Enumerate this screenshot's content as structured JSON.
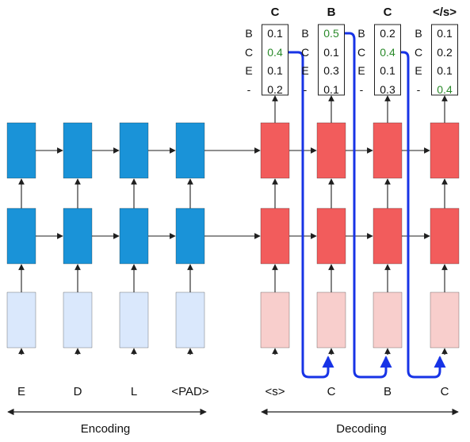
{
  "colors": {
    "enc_dark": "#1a93d8",
    "enc_light": "#dae8fc",
    "dec_dark": "#f25c5c",
    "dec_light": "#f8cecc",
    "highlight": "#2a8a2a",
    "beam_path": "#1733e6",
    "stroke": "#1f1f1f"
  },
  "encoder": {
    "inputs": [
      "E",
      "D",
      "L",
      "<PAD>"
    ]
  },
  "decoder": {
    "inputs": [
      "<s>",
      "C",
      "B",
      "C"
    ]
  },
  "outputs": {
    "row_labels": [
      "B",
      "C",
      "E",
      "-"
    ],
    "columns": [
      {
        "header": "C",
        "values": [
          "0.1",
          "0.4",
          "0.1",
          "0.2"
        ],
        "highlight_index": 1
      },
      {
        "header": "B",
        "values": [
          "0.5",
          "0.1",
          "0.3",
          "0.1"
        ],
        "highlight_index": 0
      },
      {
        "header": "C",
        "values": [
          "0.2",
          "0.4",
          "0.1",
          "0.3"
        ],
        "highlight_index": 1
      },
      {
        "header": "</s>",
        "values": [
          "0.1",
          "0.2",
          "0.1",
          "0.4"
        ],
        "highlight_index": 3
      }
    ]
  },
  "sections": {
    "encoding_label": "Encoding",
    "decoding_label": "Decoding"
  }
}
